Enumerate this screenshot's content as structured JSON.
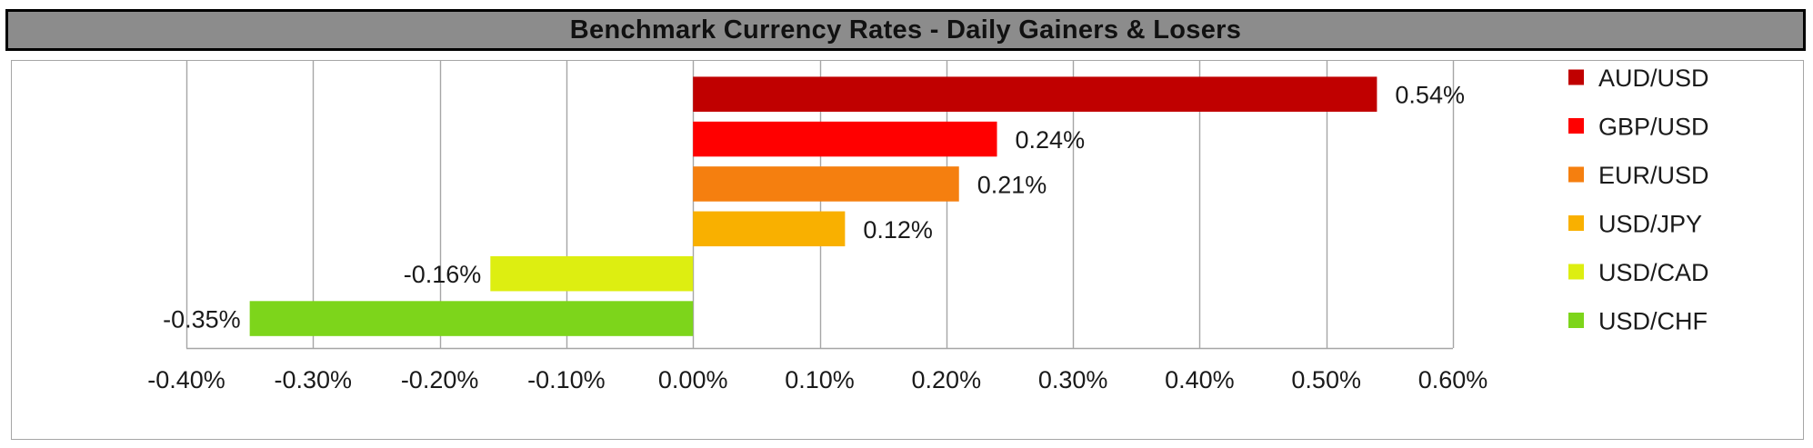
{
  "colors": {
    "title_bg": "#8c8c8c",
    "grid": "#a6a6a6"
  },
  "chart_data": {
    "type": "bar",
    "orientation": "horizontal",
    "title": "Benchmark Currency Rates - Daily Gainers & Losers",
    "xlabel": "",
    "ylabel": "",
    "xlim": [
      -0.4,
      0.6
    ],
    "x_ticks": [
      -0.4,
      -0.3,
      -0.2,
      -0.1,
      0.0,
      0.1,
      0.2,
      0.3,
      0.4,
      0.5,
      0.6
    ],
    "x_tick_labels": [
      "-0.40%",
      "-0.30%",
      "-0.20%",
      "-0.10%",
      "0.00%",
      "0.10%",
      "0.20%",
      "0.30%",
      "0.40%",
      "0.50%",
      "0.60%"
    ],
    "grid": "vertical",
    "legend_position": "right",
    "series": [
      {
        "name": "AUD/USD",
        "value": 0.54,
        "label": "0.54%",
        "color": "#c00000"
      },
      {
        "name": "GBP/USD",
        "value": 0.24,
        "label": "0.24%",
        "color": "#ff0000"
      },
      {
        "name": "EUR/USD",
        "value": 0.21,
        "label": "0.21%",
        "color": "#f57f0f"
      },
      {
        "name": "USD/JPY",
        "value": 0.12,
        "label": "0.12%",
        "color": "#f9b000"
      },
      {
        "name": "USD/CAD",
        "value": -0.16,
        "label": "-0.16%",
        "color": "#ddee11"
      },
      {
        "name": "USD/CHF",
        "value": -0.35,
        "label": "-0.35%",
        "color": "#7dd51b"
      }
    ]
  }
}
